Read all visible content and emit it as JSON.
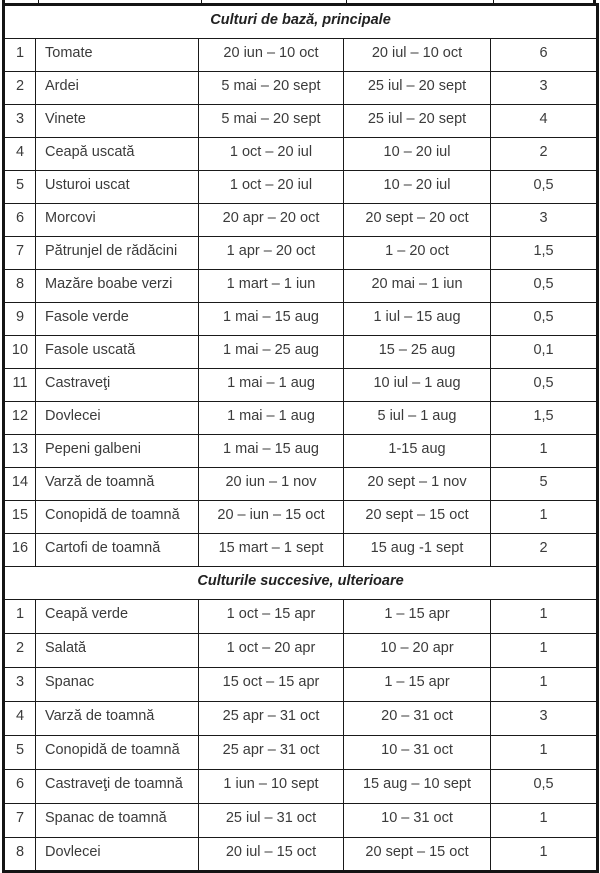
{
  "colors": {
    "border": "#141414",
    "text": "#3b3b3b",
    "background": "#ffffff"
  },
  "table": {
    "columns": [
      "index",
      "crop-name",
      "period-1",
      "period-2",
      "value"
    ],
    "sections": [
      {
        "title": "Culturi de bază, principale",
        "rows": [
          [
            "1",
            "Tomate",
            "20 iun – 10 oct",
            "20 iul – 10 oct",
            "6"
          ],
          [
            "2",
            "Ardei",
            "5 mai – 20 sept",
            "25 iul – 20 sept",
            "3"
          ],
          [
            "3",
            "Vinete",
            "5 mai – 20 sept",
            "25 iul – 20 sept",
            "4"
          ],
          [
            "4",
            "Ceapă uscată",
            "1 oct – 20 iul",
            "10 – 20 iul",
            "2"
          ],
          [
            "5",
            "Usturoi uscat",
            "1 oct – 20 iul",
            "10 – 20 iul",
            "0,5"
          ],
          [
            "6",
            "Morcovi",
            "20 apr – 20 oct",
            "20 sept – 20 oct",
            "3"
          ],
          [
            "7",
            "Pătrunjel de rădăcini",
            "1 apr – 20 oct",
            "1 – 20 oct",
            "1,5"
          ],
          [
            "8",
            "Mazăre boabe verzi",
            "1 mart – 1 iun",
            "20 mai – 1 iun",
            "0,5"
          ],
          [
            "9",
            "Fasole verde",
            "1 mai – 15 aug",
            "1 iul – 15 aug",
            "0,5"
          ],
          [
            "10",
            "Fasole uscată",
            "1 mai – 25 aug",
            "15 – 25 aug",
            "0,1"
          ],
          [
            "11",
            "Castraveţi",
            "1 mai – 1 aug",
            "10 iul – 1 aug",
            "0,5"
          ],
          [
            "12",
            "Dovlecei",
            "1 mai – 1 aug",
            "5 iul – 1 aug",
            "1,5"
          ],
          [
            "13",
            "Pepeni galbeni",
            "1 mai – 15 aug",
            "1-15 aug",
            "1"
          ],
          [
            "14",
            "Varză de toamnă",
            "20 iun – 1 nov",
            "20 sept – 1 nov",
            "5"
          ],
          [
            "15",
            "Conopidă de toamnă",
            "20 – iun – 15 oct",
            "20 sept – 15 oct",
            "1"
          ],
          [
            "16",
            "Cartofi de toamnă",
            "15 mart – 1 sept",
            "15 aug -1 sept",
            "2"
          ]
        ]
      },
      {
        "title": "Culturile succesive, ulterioare",
        "rows": [
          [
            "1",
            "Ceapă verde",
            "1 oct – 15 apr",
            "1 – 15 apr",
            "1"
          ],
          [
            "2",
            "Salată",
            "1 oct – 20 apr",
            "10 – 20 apr",
            "1"
          ],
          [
            "3",
            "Spanac",
            "15 oct – 15 apr",
            "1 – 15 apr",
            "1"
          ],
          [
            "4",
            "Varză de toamnă",
            "25 apr – 31 oct",
            "20 – 31 oct",
            "3"
          ],
          [
            "5",
            "Conopidă de toamnă",
            "25 apr – 31 oct",
            "10 – 31 oct",
            "1"
          ],
          [
            "6",
            "Castraveţi de toamnă",
            "1 iun – 10 sept",
            "15 aug – 10 sept",
            "0,5"
          ],
          [
            "7",
            "Spanac de toamnă",
            "25 iul – 31 oct",
            "10 – 31 oct",
            "1"
          ],
          [
            "8",
            "Dovlecei",
            "20 iul – 15 oct",
            "20 sept – 15 oct",
            "1"
          ]
        ]
      }
    ]
  }
}
